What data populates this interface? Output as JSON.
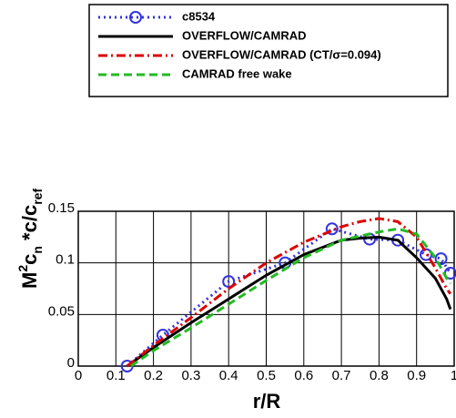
{
  "chart_data": {
    "type": "line",
    "x_label": "r/R",
    "y_label": [
      "M",
      "2",
      "c",
      "n",
      " *c/c",
      "ref"
    ],
    "xlim": [
      0,
      1
    ],
    "ylim": [
      0,
      0.15
    ],
    "xticks": [
      0,
      0.1,
      0.2,
      0.3,
      0.4,
      0.5,
      0.6,
      0.7,
      0.8,
      0.9,
      1
    ],
    "yticks": [
      0,
      0.05,
      0.1,
      0.15
    ],
    "grid": true,
    "legend": "top",
    "series": [
      {
        "name": "c8534",
        "color": "#3333dd",
        "dash": "dot",
        "marker": "circle",
        "x": [
          0.13,
          0.225,
          0.4,
          0.55,
          0.675,
          0.775,
          0.85,
          0.925,
          0.965,
          0.99
        ],
        "values": [
          0,
          0.03,
          0.082,
          0.1,
          0.133,
          0.123,
          0.122,
          0.108,
          0.104,
          0.09
        ]
      },
      {
        "name": "OVERFLOW/CAMRAD",
        "color": "#000000",
        "dash": "solid",
        "x": [
          0.13,
          0.2,
          0.3,
          0.4,
          0.5,
          0.6,
          0.7,
          0.75,
          0.8,
          0.85,
          0.9,
          0.95,
          0.98,
          0.99
        ],
        "values": [
          0,
          0.018,
          0.042,
          0.065,
          0.088,
          0.108,
          0.122,
          0.124,
          0.125,
          0.122,
          0.105,
          0.085,
          0.065,
          0.055
        ]
      },
      {
        "name": "OVERFLOW/CAMRAD (CT/σ=0.094)",
        "color": "#dd0000",
        "dash": "dashdot",
        "x": [
          0.13,
          0.2,
          0.3,
          0.4,
          0.5,
          0.6,
          0.7,
          0.75,
          0.8,
          0.85,
          0.9,
          0.95,
          0.98,
          0.99
        ],
        "values": [
          0,
          0.02,
          0.047,
          0.075,
          0.1,
          0.12,
          0.135,
          0.14,
          0.143,
          0.14,
          0.125,
          0.095,
          0.075,
          0.07
        ]
      },
      {
        "name": "CAMRAD free wake",
        "color": "#22bb22",
        "dash": "dash",
        "x": [
          0.14,
          0.2,
          0.3,
          0.4,
          0.5,
          0.6,
          0.7,
          0.8,
          0.85,
          0.9,
          0.95,
          0.98,
          0.99
        ],
        "values": [
          0,
          0.015,
          0.037,
          0.06,
          0.083,
          0.105,
          0.122,
          0.13,
          0.133,
          0.128,
          0.105,
          0.085,
          0.08
        ]
      }
    ]
  }
}
